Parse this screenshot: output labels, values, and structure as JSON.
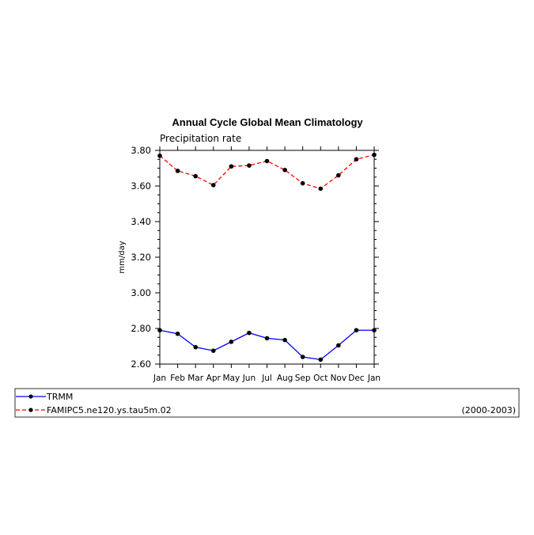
{
  "chart_data": {
    "type": "line",
    "title": "Annual Cycle Global Mean Climatology",
    "subtitle": "Precipitation rate",
    "ylabel": "mm/day",
    "xlabel": "",
    "ylim": [
      2.6,
      3.8
    ],
    "yticks": [
      "2.60",
      "2.80",
      "3.00",
      "3.20",
      "3.40",
      "3.60",
      "3.80"
    ],
    "yminor_step": 0.05,
    "categories": [
      "Jan",
      "Feb",
      "Mar",
      "Apr",
      "May",
      "Jun",
      "Jul",
      "Aug",
      "Sep",
      "Oct",
      "Nov",
      "Dec",
      "Jan"
    ],
    "grid": false,
    "legend_placement": "below",
    "series": [
      {
        "name": "TRMM",
        "color": "#0000ff",
        "dash": "solid",
        "marker": "dot",
        "values": [
          2.79,
          2.77,
          2.695,
          2.675,
          2.725,
          2.775,
          2.745,
          2.735,
          2.64,
          2.625,
          2.705,
          2.79,
          2.79
        ]
      },
      {
        "name": "FAMIPC5.ne120.ys.tau5m.02",
        "color": "#ff0000",
        "dash": "dashed",
        "marker": "dot",
        "values": [
          3.77,
          3.685,
          3.655,
          3.605,
          3.71,
          3.715,
          3.74,
          3.69,
          3.615,
          3.585,
          3.66,
          3.75,
          3.775
        ]
      }
    ],
    "legend_note": "(2000-2003)"
  }
}
